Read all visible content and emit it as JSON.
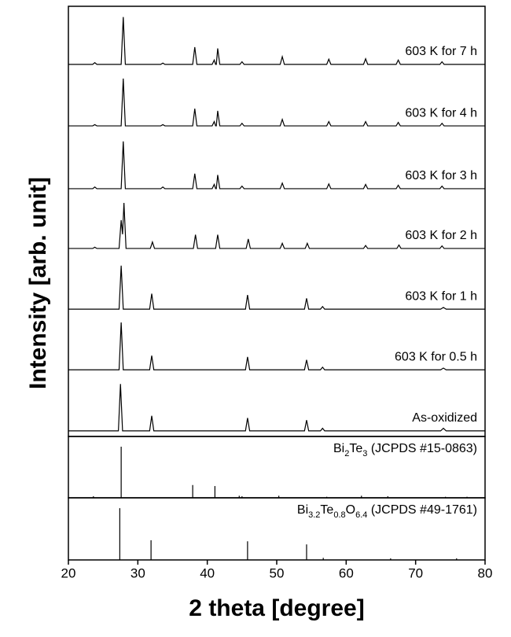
{
  "chart_data": [
    {
      "type": "line",
      "ylabel": "Intensity [arb. unit]",
      "xlim": [
        20,
        80
      ],
      "ylim": [
        0,
        100
      ],
      "color": "#000000",
      "series": [
        {
          "name": "603 K for 7 h",
          "color": "#000000",
          "x": [
            20,
            23.5,
            23.8,
            24.1,
            27.6,
            27.9,
            28.2,
            33.3,
            33.6,
            33.9,
            37.9,
            38.2,
            38.5,
            40.7,
            41.0,
            41.2,
            41.3,
            41.5,
            41.8,
            44.7,
            45.0,
            45.3,
            50.5,
            50.8,
            51.1,
            57.2,
            57.5,
            57.8,
            62.5,
            62.8,
            63.1,
            67.2,
            67.5,
            67.8,
            73.5,
            73.8,
            74.1,
            80
          ],
          "values": [
            86.5,
            86.5,
            86.9,
            86.5,
            86.5,
            97.5,
            86.5,
            86.5,
            86.8,
            86.5,
            86.5,
            90.5,
            86.5,
            86.5,
            87.5,
            86.5,
            86.5,
            90.2,
            86.5,
            86.5,
            87.1,
            86.5,
            86.5,
            88.3,
            86.5,
            86.5,
            87.7,
            86.5,
            86.5,
            87.8,
            86.5,
            86.5,
            87.5,
            86.5,
            86.5,
            87.1,
            86.5,
            86.5
          ]
        },
        {
          "name": "603 K for 4 h",
          "color": "#000000",
          "x": [
            20,
            23.5,
            23.8,
            24.1,
            27.6,
            27.9,
            28.2,
            33.3,
            33.6,
            33.9,
            37.9,
            38.2,
            38.5,
            40.7,
            41.0,
            41.2,
            41.3,
            41.5,
            41.8,
            44.7,
            45.0,
            45.3,
            50.5,
            50.8,
            51.1,
            57.2,
            57.5,
            57.8,
            62.5,
            62.8,
            63.1,
            67.2,
            67.5,
            67.8,
            73.5,
            73.8,
            74.1,
            80
          ],
          "values": [
            72.2,
            72.2,
            72.5,
            72.2,
            72.2,
            83.2,
            72.2,
            72.2,
            72.5,
            72.2,
            72.2,
            76.2,
            72.2,
            72.2,
            73.2,
            72.2,
            72.2,
            75.7,
            72.2,
            72.2,
            72.8,
            72.2,
            72.2,
            73.7,
            72.2,
            72.2,
            73.2,
            72.2,
            72.2,
            73.2,
            72.2,
            72.2,
            73.0,
            72.2,
            72.2,
            72.8,
            72.2,
            72.2
          ]
        },
        {
          "name": "603 K for 3 h",
          "color": "#000000",
          "x": [
            20,
            23.5,
            23.8,
            24.1,
            27.6,
            27.9,
            28.2,
            33.3,
            33.6,
            33.9,
            37.9,
            38.2,
            38.5,
            40.7,
            41.0,
            41.2,
            41.3,
            41.5,
            41.8,
            44.7,
            45.0,
            45.3,
            50.5,
            50.8,
            51.1,
            57.2,
            57.5,
            57.8,
            62.5,
            62.8,
            63.1,
            67.2,
            67.5,
            67.8,
            73.5,
            73.8,
            74.1,
            80
          ],
          "values": [
            57.6,
            57.6,
            58.0,
            57.6,
            57.6,
            68.6,
            57.6,
            57.6,
            58.0,
            57.6,
            57.6,
            61.1,
            57.6,
            57.6,
            58.6,
            57.6,
            57.6,
            60.8,
            57.6,
            57.6,
            58.2,
            57.6,
            57.6,
            58.9,
            57.6,
            57.6,
            58.7,
            57.6,
            57.6,
            58.6,
            57.6,
            57.6,
            58.4,
            57.6,
            57.6,
            58.2,
            57.6,
            57.6
          ]
        },
        {
          "name": "603 K for 2 h",
          "color": "#000000",
          "x": [
            20,
            23.5,
            23.8,
            24.1,
            27.3,
            27.6,
            27.8,
            28.0,
            28.3,
            31.8,
            32.1,
            32.4,
            38.0,
            38.3,
            38.6,
            41.2,
            41.5,
            41.8,
            45.6,
            45.9,
            46.2,
            50.5,
            50.8,
            51.1,
            54.1,
            54.4,
            54.7,
            62.5,
            62.8,
            63.1,
            67.3,
            67.6,
            67.9,
            73.5,
            73.8,
            74.1,
            80
          ],
          "values": [
            43.7,
            43.7,
            44.0,
            43.7,
            43.7,
            50.3,
            47.0,
            54.3,
            43.7,
            43.7,
            45.2,
            43.7,
            43.7,
            46.9,
            43.7,
            43.7,
            46.9,
            43.7,
            43.7,
            45.9,
            43.7,
            43.7,
            44.9,
            43.7,
            43.7,
            44.9,
            43.7,
            43.7,
            44.4,
            43.7,
            43.7,
            44.5,
            43.7,
            43.7,
            44.3,
            43.7,
            43.7
          ]
        },
        {
          "name": "603 K for 1 h",
          "color": "#000000",
          "x": [
            20,
            27.3,
            27.6,
            27.9,
            31.7,
            32.0,
            32.3,
            45.5,
            45.8,
            46.1,
            54.0,
            54.3,
            54.6,
            56.3,
            56.6,
            56.9,
            73.6,
            74.0,
            74.4,
            80
          ],
          "values": [
            29.6,
            29.6,
            39.7,
            29.6,
            29.6,
            33.2,
            29.6,
            29.6,
            32.9,
            29.6,
            29.6,
            32.1,
            29.6,
            29.6,
            30.2,
            29.6,
            29.6,
            30.0,
            29.6,
            29.6
          ]
        },
        {
          "name": "603 K for 0.5 h",
          "color": "#000000",
          "x": [
            20,
            27.3,
            27.6,
            27.9,
            31.7,
            32.0,
            32.3,
            45.5,
            45.8,
            46.1,
            54.0,
            54.3,
            54.6,
            56.3,
            56.6,
            56.9,
            73.6,
            74.0,
            74.4,
            80
          ],
          "values": [
            15.5,
            15.5,
            26.5,
            15.5,
            15.5,
            18.8,
            15.5,
            15.5,
            18.5,
            15.5,
            15.5,
            17.8,
            15.5,
            15.5,
            16.1,
            15.5,
            15.5,
            15.9,
            15.5,
            15.5
          ]
        },
        {
          "name": "As-oxidized",
          "color": "#000000",
          "x": [
            20,
            27.2,
            27.5,
            27.8,
            31.7,
            32.0,
            32.3,
            45.5,
            45.8,
            46.1,
            54.0,
            54.3,
            54.6,
            56.3,
            56.6,
            56.9,
            73.6,
            74.0,
            74.4,
            80
          ],
          "values": [
            1.3,
            1.3,
            12.2,
            1.3,
            1.3,
            4.8,
            1.3,
            1.3,
            4.3,
            1.3,
            1.3,
            3.8,
            1.3,
            1.3,
            1.9,
            1.3,
            1.3,
            1.9,
            1.3,
            1.3
          ]
        }
      ]
    },
    {
      "type": "stem",
      "label": [
        "Bi",
        "2",
        "Te",
        "3",
        " (JCPDS #15-0863)"
      ],
      "xlim": [
        20,
        80
      ],
      "ylim": [
        0,
        120
      ],
      "color": "#000000",
      "x": [
        23.6,
        27.6,
        37.9,
        41.1,
        44.6,
        45.0,
        50.3,
        57.2,
        62.2,
        66.0,
        74.3,
        77.4
      ],
      "values": [
        3,
        100,
        25,
        23,
        4,
        3,
        4,
        2,
        4,
        3,
        2,
        2
      ]
    },
    {
      "type": "stem",
      "label": [
        "Bi",
        "3.2",
        "Te",
        "0.8",
        "O",
        "6.4",
        " (JCPDS #49-1761)"
      ],
      "xlim": [
        20,
        80
      ],
      "ylim": [
        0,
        120
      ],
      "color": "#000000",
      "x": [
        27.4,
        31.9,
        45.8,
        54.3,
        56.7,
        66.4,
        75.9
      ],
      "values": [
        100,
        38,
        36,
        30,
        4,
        3,
        3
      ],
      "xlabel": "2 theta [degree]",
      "xticks": [
        20,
        30,
        40,
        50,
        60,
        70,
        80
      ]
    }
  ]
}
